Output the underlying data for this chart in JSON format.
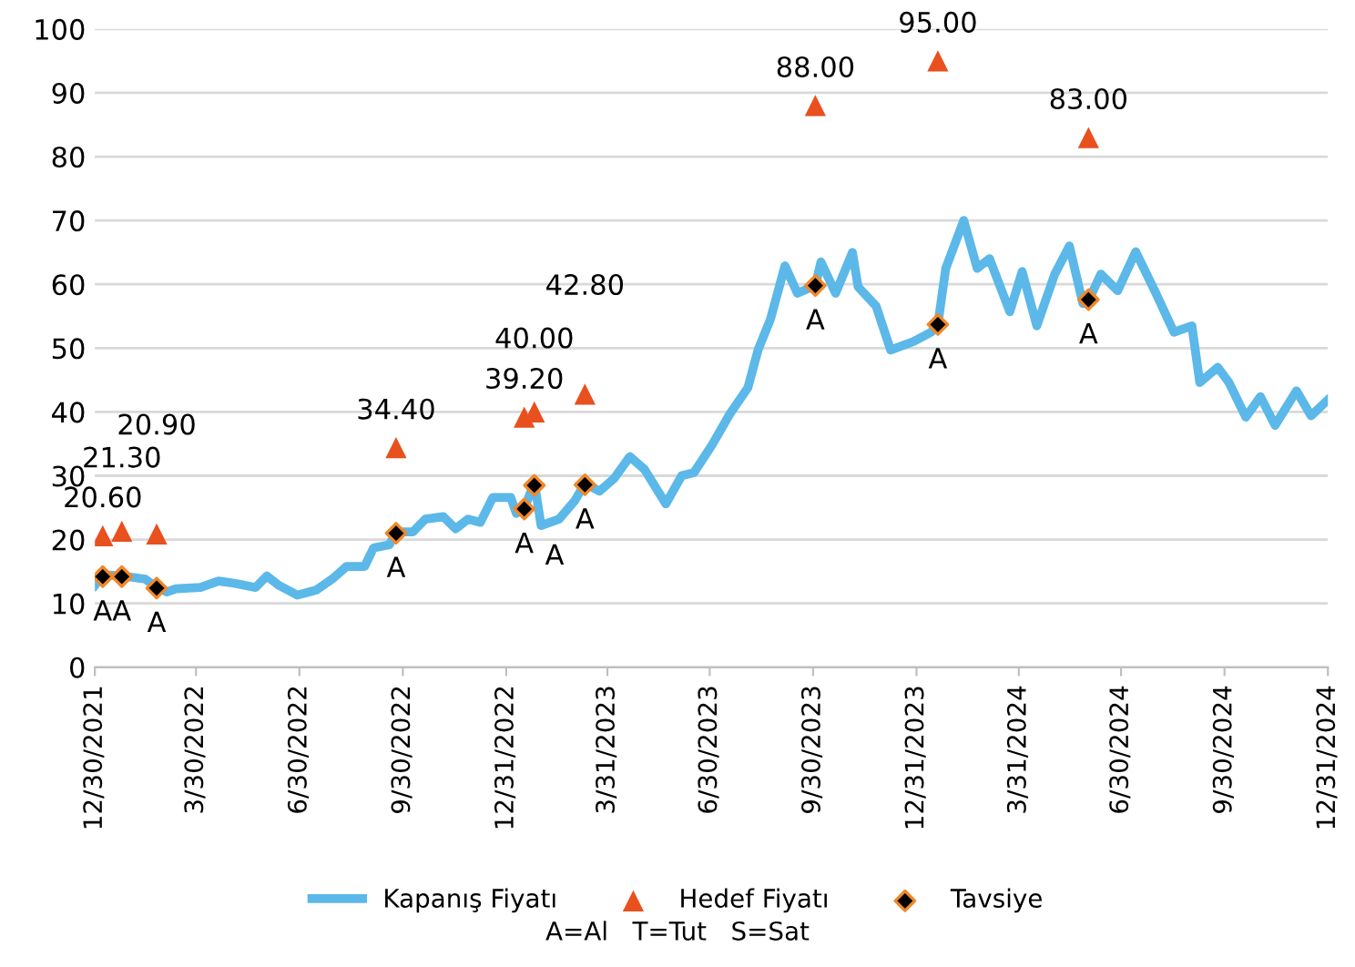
{
  "chart_data": {
    "type": "line",
    "xlim": [
      "2021-12-30",
      "2024-12-31"
    ],
    "xticks": [
      {
        "value": "2021-12-30",
        "label": "12/30/2021"
      },
      {
        "value": "2022-03-30",
        "label": "3/30/2022"
      },
      {
        "value": "2022-06-30",
        "label": "6/30/2022"
      },
      {
        "value": "2022-09-30",
        "label": "9/30/2022"
      },
      {
        "value": "2022-12-31",
        "label": "12/31/2022"
      },
      {
        "value": "2023-03-31",
        "label": "3/31/2023"
      },
      {
        "value": "2023-06-30",
        "label": "6/30/2023"
      },
      {
        "value": "2023-09-30",
        "label": "9/30/2023"
      },
      {
        "value": "2023-12-31",
        "label": "12/31/2023"
      },
      {
        "value": "2024-03-31",
        "label": "3/31/2024"
      },
      {
        "value": "2024-06-30",
        "label": "6/30/2024"
      },
      {
        "value": "2024-09-30",
        "label": "9/30/2024"
      },
      {
        "value": "2024-12-31",
        "label": "12/31/2024"
      }
    ],
    "ylim": [
      0,
      100
    ],
    "yticks": [
      0,
      10,
      20,
      30,
      40,
      50,
      60,
      70,
      80,
      90,
      100
    ],
    "grid": "y",
    "legend": "bottom",
    "annotations": [
      "A=Al   T=Tut   S=Sat"
    ],
    "series": [
      {
        "name": "Kapanış Fiyatı",
        "color": "#5bb8e8",
        "marker": "none",
        "line_style": "solid",
        "x": [
          "2021-12-30",
          "2022-01-06",
          "2022-01-23",
          "2022-02-13",
          "2022-02-23",
          "2022-03-04",
          "2022-03-12",
          "2022-04-03",
          "2022-04-19",
          "2022-05-05",
          "2022-05-22",
          "2022-06-01",
          "2022-06-12",
          "2022-06-28",
          "2022-07-15",
          "2022-07-29",
          "2022-08-11",
          "2022-08-27",
          "2022-09-04",
          "2022-09-18",
          "2022-09-24",
          "2022-10-09",
          "2022-10-20",
          "2022-11-05",
          "2022-11-16",
          "2022-11-27",
          "2022-12-08",
          "2022-12-19",
          "2023-01-04",
          "2023-01-09",
          "2023-01-16",
          "2023-01-25",
          "2023-01-31",
          "2023-02-16",
          "2023-03-02",
          "2023-03-11",
          "2023-03-24",
          "2023-04-06",
          "2023-04-20",
          "2023-05-03",
          "2023-05-22",
          "2023-06-05",
          "2023-06-16",
          "2023-07-02",
          "2023-07-18",
          "2023-08-03",
          "2023-08-12",
          "2023-08-23",
          "2023-09-05",
          "2023-09-16",
          "2023-10-02",
          "2023-10-07",
          "2023-10-20",
          "2023-11-04",
          "2023-11-09",
          "2023-11-25",
          "2023-12-08",
          "2023-12-28",
          "2024-01-13",
          "2024-01-19",
          "2024-01-26",
          "2024-02-11",
          "2024-02-23",
          "2024-03-05",
          "2024-03-23",
          "2024-04-03",
          "2024-04-16",
          "2024-05-02",
          "2024-05-15",
          "2024-05-27",
          "2024-06-01",
          "2024-06-12",
          "2024-06-27",
          "2024-07-13",
          "2024-07-31",
          "2024-08-16",
          "2024-09-01",
          "2024-09-08",
          "2024-09-24",
          "2024-10-04",
          "2024-10-19",
          "2024-11-01",
          "2024-11-14",
          "2024-12-03",
          "2024-12-16",
          "2024-12-31"
        ],
        "values": [
          12.8,
          14.5,
          14.3,
          13.8,
          12.5,
          11.8,
          12.3,
          12.5,
          13.5,
          13.1,
          12.5,
          14.3,
          12.8,
          11.3,
          12.1,
          13.8,
          15.8,
          15.8,
          18.7,
          19.2,
          21.2,
          21.2,
          23.2,
          23.6,
          21.7,
          23.2,
          22.7,
          26.6,
          26.6,
          24.1,
          24.8,
          29,
          22.2,
          23.2,
          26.1,
          28.8,
          27.6,
          29.6,
          33,
          31,
          25.6,
          30,
          30.5,
          34.8,
          39.7,
          43.8,
          49.7,
          54.5,
          62.9,
          58.6,
          59.8,
          63.5,
          58.6,
          65,
          59.6,
          56.6,
          49.7,
          51,
          52.5,
          53.7,
          62.5,
          70,
          62.5,
          64,
          55.7,
          62,
          53.5,
          61.6,
          66,
          57,
          57.4,
          61.6,
          59,
          65.1,
          58.6,
          52.5,
          53.5,
          44.6,
          47,
          44.6,
          39.2,
          42.4,
          37.9,
          43.3,
          39.4,
          41.9
        ]
      },
      {
        "name": "Hedef Fiyatı",
        "type": "scatter",
        "color": "#e8501e",
        "marker": "triangle",
        "x": [
          "2022-01-06",
          "2022-01-23",
          "2022-02-23",
          "2022-09-24",
          "2023-01-16",
          "2023-01-25",
          "2023-03-11",
          "2023-10-02",
          "2024-01-19",
          "2024-06-01"
        ],
        "values": [
          20.6,
          21.3,
          20.9,
          34.4,
          39.2,
          40.0,
          42.8,
          88.0,
          95.0,
          83.0
        ],
        "value_labels": [
          "20.60",
          "21.30",
          "20.90",
          "34.40",
          "39.20",
          "40.00",
          "42.80",
          "88.00",
          "95.00",
          "83.00"
        ]
      },
      {
        "name": "Tavsiye",
        "type": "scatter",
        "color": "#000000",
        "marker": "diamond",
        "x": [
          "2022-01-06",
          "2022-01-23",
          "2022-02-23",
          "2022-09-24",
          "2023-01-16",
          "2023-01-25",
          "2023-03-11",
          "2023-10-02",
          "2024-01-19",
          "2024-06-01"
        ],
        "values": [
          14.2,
          14.2,
          12.4,
          21.0,
          24.8,
          28.5,
          28.6,
          59.8,
          53.7,
          57.6
        ],
        "value_labels": [
          "A",
          "A",
          "A",
          "A",
          "A",
          "A",
          "A",
          "A",
          "A",
          "A"
        ]
      }
    ]
  }
}
